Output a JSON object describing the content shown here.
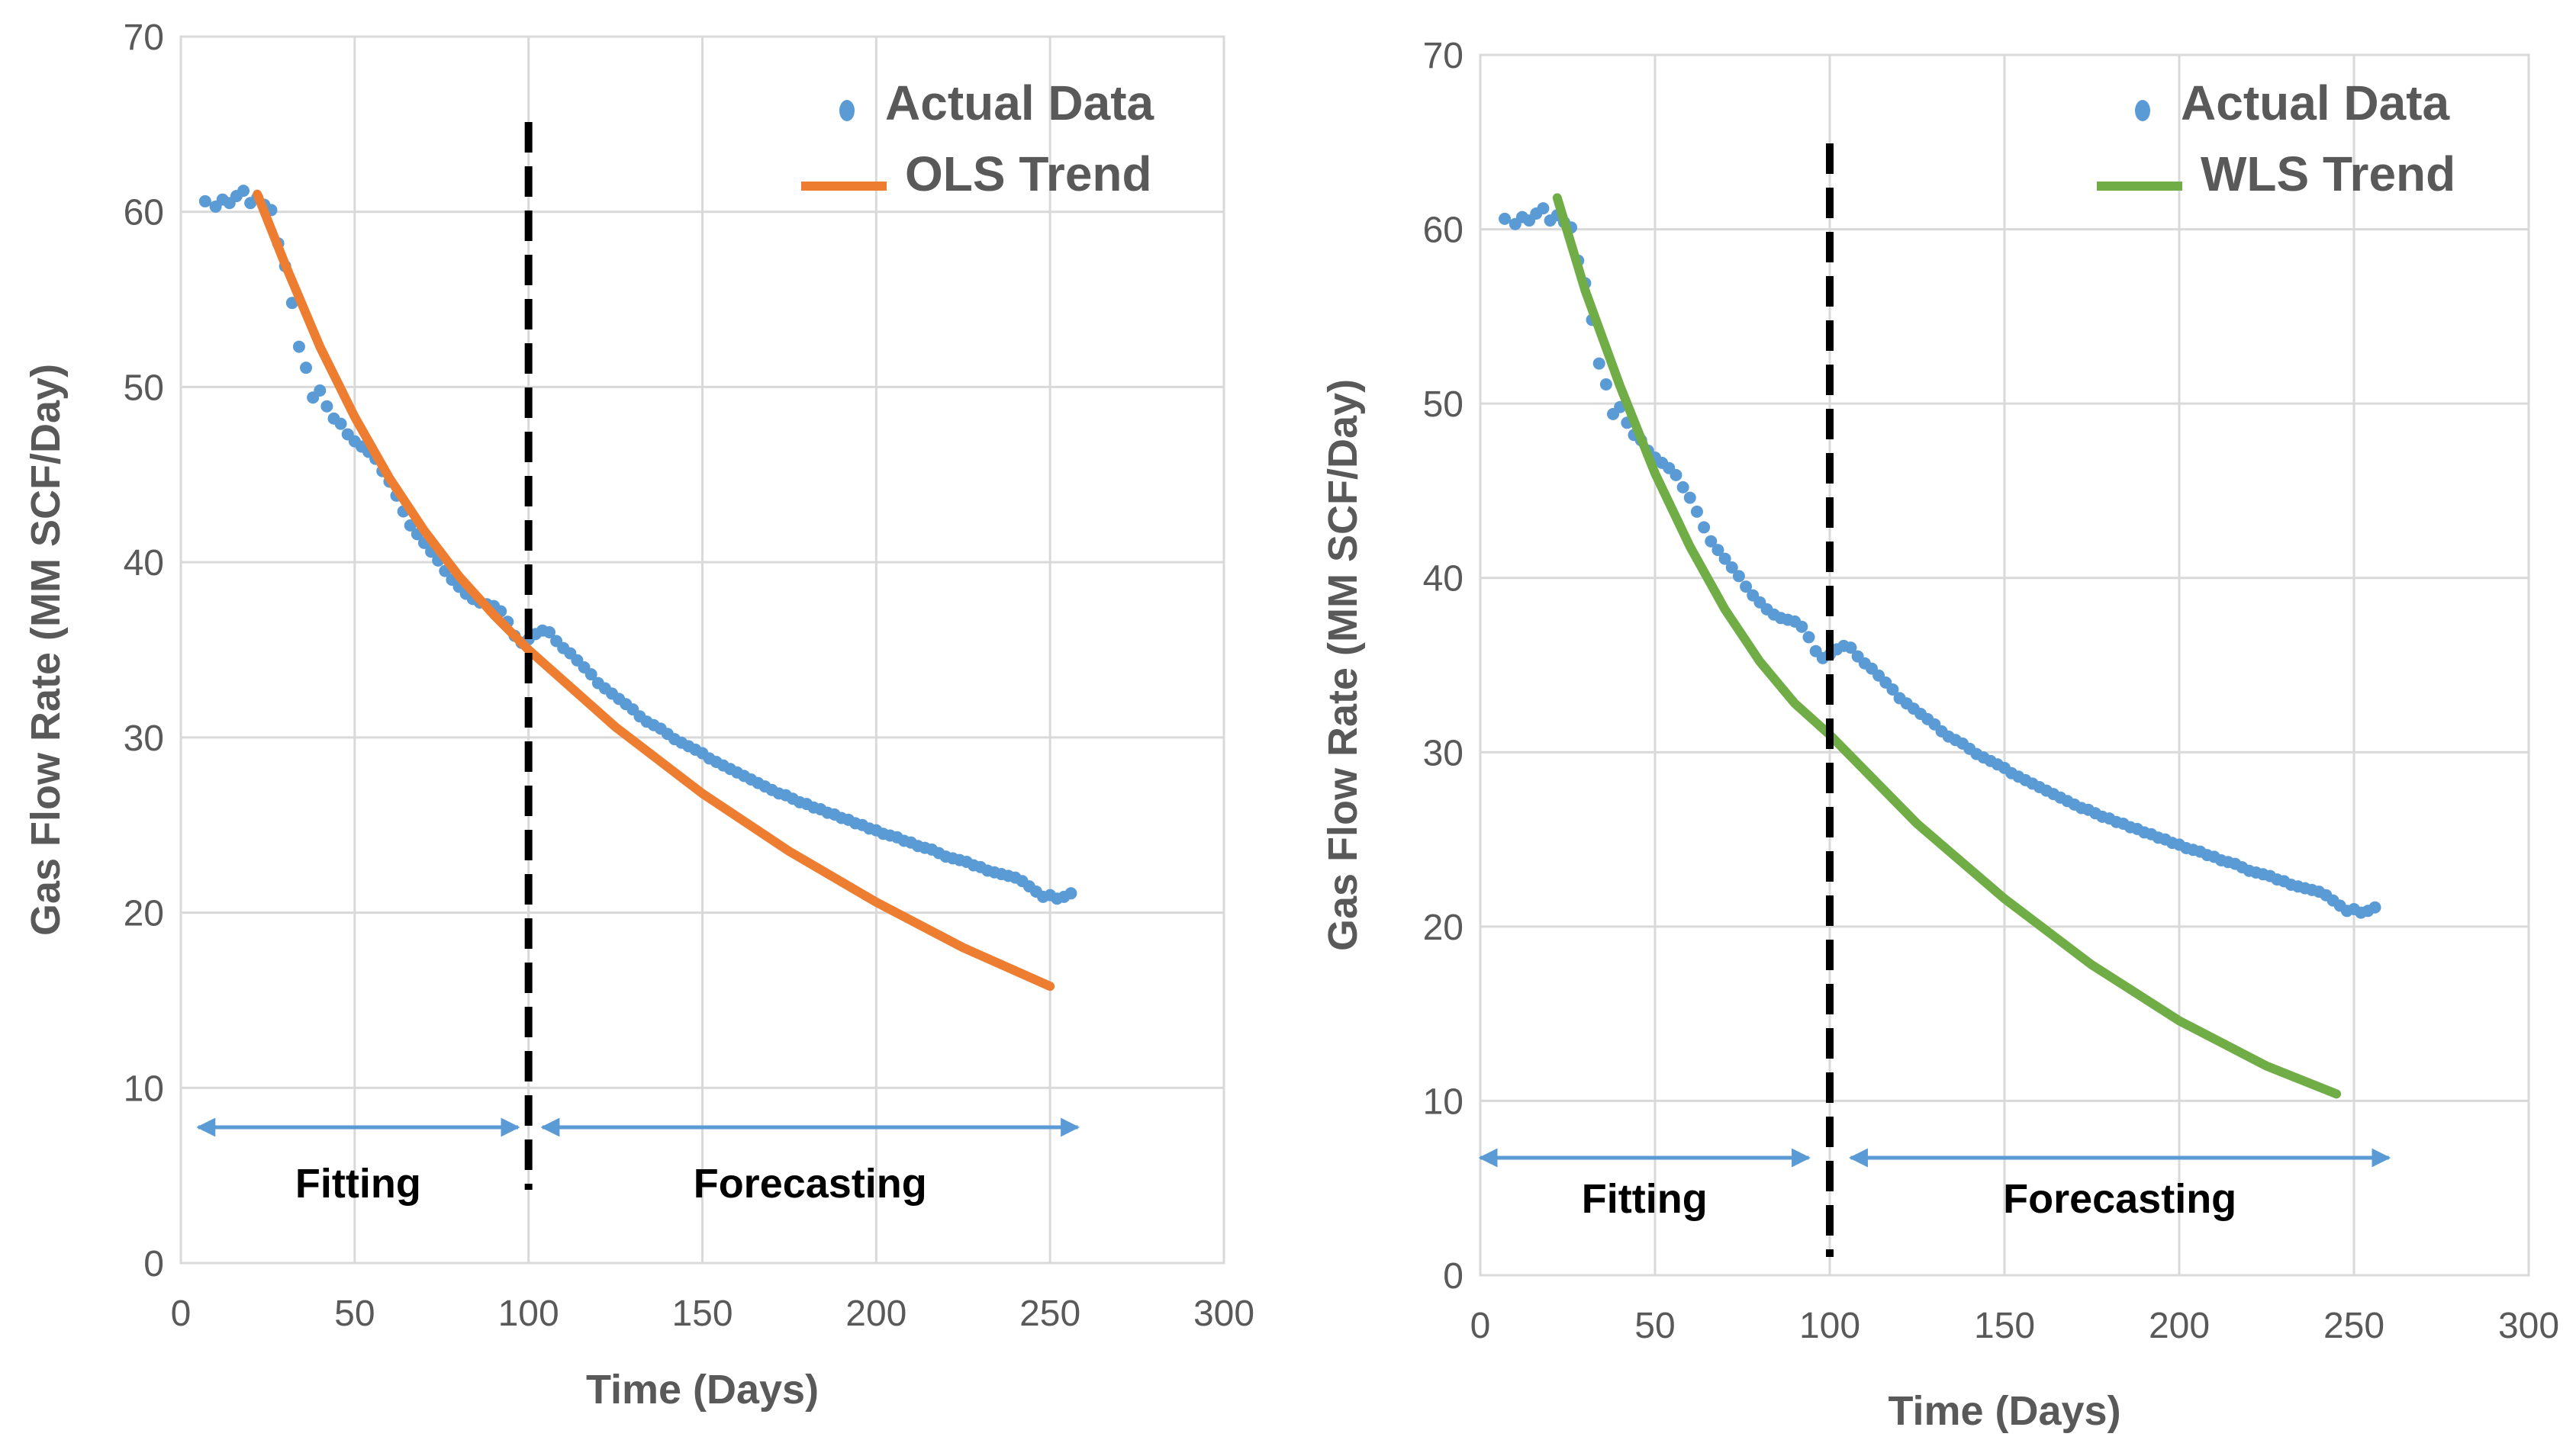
{
  "chart_data": [
    {
      "type": "scatter",
      "id": "ols",
      "xlabel": "Time (Days)",
      "ylabel": "Gas Flow Rate (MM SCF/Day)",
      "xlim": [
        0,
        300
      ],
      "ylim": [
        0,
        70
      ],
      "xticks": [
        0,
        50,
        100,
        150,
        200,
        250,
        300
      ],
      "yticks": [
        0,
        10,
        20,
        30,
        40,
        50,
        60,
        70
      ],
      "grid": true,
      "legend_position": "top-right",
      "split_x": 100,
      "series": [
        {
          "name": "Actual Data",
          "kind": "scatter",
          "color": "#5B9BD5",
          "x": [
            7,
            10,
            12,
            14,
            16,
            18,
            20,
            22,
            24,
            26,
            28,
            30,
            32,
            34,
            36,
            38,
            40,
            42,
            44,
            46,
            48,
            50,
            52,
            54,
            56,
            58,
            60,
            62,
            64,
            66,
            68,
            70,
            72,
            74,
            76,
            78,
            80,
            82,
            84,
            86,
            88,
            90,
            92,
            94,
            96,
            98,
            100,
            102,
            104,
            106,
            108,
            110,
            112,
            114,
            116,
            118,
            120,
            122,
            124,
            126,
            128,
            130,
            132,
            134,
            136,
            138,
            140,
            142,
            144,
            146,
            148,
            150,
            152,
            154,
            156,
            158,
            160,
            162,
            164,
            166,
            168,
            170,
            172,
            174,
            176,
            178,
            180,
            182,
            184,
            186,
            188,
            190,
            192,
            194,
            196,
            198,
            200,
            202,
            204,
            206,
            208,
            210,
            212,
            214,
            216,
            218,
            220,
            222,
            224,
            226,
            228,
            230,
            232,
            234,
            236,
            238,
            240,
            242,
            244,
            246,
            248,
            250,
            252,
            254,
            256
          ],
          "y": [
            60.6,
            60.3,
            60.7,
            60.5,
            60.9,
            61.2,
            60.5,
            60.8,
            60.4,
            60.1,
            58.2,
            56.9,
            54.8,
            52.3,
            51.1,
            49.4,
            49.8,
            48.9,
            48.2,
            47.9,
            47.3,
            46.9,
            46.6,
            46.3,
            45.9,
            45.2,
            44.6,
            43.8,
            42.9,
            42.1,
            41.6,
            41.1,
            40.6,
            40.1,
            39.5,
            39.0,
            38.6,
            38.2,
            37.9,
            37.7,
            37.6,
            37.5,
            37.2,
            36.6,
            35.8,
            35.4,
            35.6,
            35.9,
            36.1,
            36.0,
            35.5,
            35.1,
            34.8,
            34.4,
            34.0,
            33.6,
            33.1,
            32.8,
            32.5,
            32.2,
            31.9,
            31.6,
            31.2,
            30.9,
            30.7,
            30.5,
            30.2,
            29.9,
            29.7,
            29.5,
            29.3,
            29.1,
            28.8,
            28.6,
            28.4,
            28.2,
            28.0,
            27.8,
            27.6,
            27.4,
            27.2,
            27.0,
            26.8,
            26.7,
            26.5,
            26.3,
            26.2,
            26.0,
            25.9,
            25.7,
            25.6,
            25.4,
            25.3,
            25.1,
            25.0,
            24.8,
            24.7,
            24.5,
            24.4,
            24.3,
            24.1,
            24.0,
            23.8,
            23.7,
            23.6,
            23.4,
            23.2,
            23.1,
            23.0,
            22.9,
            22.7,
            22.6,
            22.4,
            22.3,
            22.2,
            22.1,
            22.0,
            21.8,
            21.5,
            21.2,
            20.9,
            21.0,
            20.8,
            20.9,
            21.1
          ]
        },
        {
          "name": "OLS Trend",
          "kind": "line",
          "color": "#ED7D31",
          "x": [
            22,
            30,
            40,
            50,
            60,
            70,
            80,
            90,
            100,
            125,
            150,
            175,
            200,
            225,
            250
          ],
          "y": [
            61.0,
            57.0,
            52.3,
            48.3,
            44.8,
            41.8,
            39.2,
            37.0,
            35.0,
            30.6,
            26.8,
            23.5,
            20.6,
            18.0,
            15.8
          ]
        }
      ],
      "regions": [
        {
          "label": "Fitting",
          "from": 5,
          "to": 97
        },
        {
          "label": "Forecasting",
          "from": 104,
          "to": 258
        }
      ]
    },
    {
      "type": "scatter",
      "id": "wls",
      "xlabel": "Time (Days)",
      "ylabel": "Gas Flow Rate (MM SCF/Day)",
      "xlim": [
        0,
        300
      ],
      "ylim": [
        0,
        70
      ],
      "xticks": [
        0,
        50,
        100,
        150,
        200,
        250,
        300
      ],
      "yticks": [
        0,
        10,
        20,
        30,
        40,
        50,
        60,
        70
      ],
      "grid": true,
      "legend_position": "top-right",
      "split_x": 100,
      "series": [
        {
          "name": "Actual Data",
          "kind": "scatter",
          "color": "#5B9BD5",
          "x": [
            7,
            10,
            12,
            14,
            16,
            18,
            20,
            22,
            24,
            26,
            28,
            30,
            32,
            34,
            36,
            38,
            40,
            42,
            44,
            46,
            48,
            50,
            52,
            54,
            56,
            58,
            60,
            62,
            64,
            66,
            68,
            70,
            72,
            74,
            76,
            78,
            80,
            82,
            84,
            86,
            88,
            90,
            92,
            94,
            96,
            98,
            100,
            102,
            104,
            106,
            108,
            110,
            112,
            114,
            116,
            118,
            120,
            122,
            124,
            126,
            128,
            130,
            132,
            134,
            136,
            138,
            140,
            142,
            144,
            146,
            148,
            150,
            152,
            154,
            156,
            158,
            160,
            162,
            164,
            166,
            168,
            170,
            172,
            174,
            176,
            178,
            180,
            182,
            184,
            186,
            188,
            190,
            192,
            194,
            196,
            198,
            200,
            202,
            204,
            206,
            208,
            210,
            212,
            214,
            216,
            218,
            220,
            222,
            224,
            226,
            228,
            230,
            232,
            234,
            236,
            238,
            240,
            242,
            244,
            246,
            248,
            250,
            252,
            254,
            256
          ],
          "y": [
            60.6,
            60.3,
            60.7,
            60.5,
            60.9,
            61.2,
            60.5,
            60.8,
            60.4,
            60.1,
            58.2,
            56.9,
            54.8,
            52.3,
            51.1,
            49.4,
            49.8,
            48.9,
            48.2,
            47.9,
            47.3,
            46.9,
            46.6,
            46.3,
            45.9,
            45.2,
            44.6,
            43.8,
            42.9,
            42.1,
            41.6,
            41.1,
            40.6,
            40.1,
            39.5,
            39.0,
            38.6,
            38.2,
            37.9,
            37.7,
            37.6,
            37.5,
            37.2,
            36.6,
            35.8,
            35.4,
            35.6,
            35.9,
            36.1,
            36.0,
            35.5,
            35.1,
            34.8,
            34.4,
            34.0,
            33.6,
            33.1,
            32.8,
            32.5,
            32.2,
            31.9,
            31.6,
            31.2,
            30.9,
            30.7,
            30.5,
            30.2,
            29.9,
            29.7,
            29.5,
            29.3,
            29.1,
            28.8,
            28.6,
            28.4,
            28.2,
            28.0,
            27.8,
            27.6,
            27.4,
            27.2,
            27.0,
            26.8,
            26.7,
            26.5,
            26.3,
            26.2,
            26.0,
            25.9,
            25.7,
            25.6,
            25.4,
            25.3,
            25.1,
            25.0,
            24.8,
            24.7,
            24.5,
            24.4,
            24.3,
            24.1,
            24.0,
            23.8,
            23.7,
            23.6,
            23.4,
            23.2,
            23.1,
            23.0,
            22.9,
            22.7,
            22.6,
            22.4,
            22.3,
            22.2,
            22.1,
            22.0,
            21.8,
            21.5,
            21.2,
            20.9,
            21.0,
            20.8,
            20.9,
            21.1
          ]
        },
        {
          "name": "WLS Trend",
          "kind": "line",
          "color": "#70AD47",
          "x": [
            22,
            30,
            40,
            50,
            60,
            70,
            80,
            90,
            100,
            125,
            150,
            175,
            200,
            225,
            245
          ],
          "y": [
            61.8,
            56.5,
            51.0,
            46.0,
            41.8,
            38.2,
            35.2,
            32.8,
            31.0,
            25.9,
            21.6,
            17.8,
            14.6,
            12.0,
            10.4
          ]
        }
      ],
      "regions": [
        {
          "label": "Fitting",
          "from": 0,
          "to": 94
        },
        {
          "label": "Forecasting",
          "from": 106,
          "to": 260
        }
      ]
    }
  ]
}
